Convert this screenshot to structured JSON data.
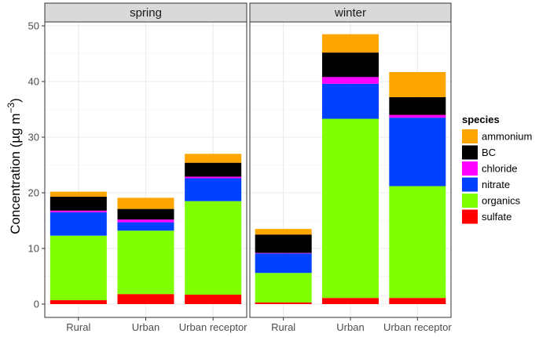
{
  "chart_data": {
    "type": "bar",
    "stacked": true,
    "ylabel": "Concentration (µg m⁻³)",
    "ylabel_main": "Concentration (µg m",
    "ylabel_sup": "−3",
    "ylabel_close": ")",
    "ylim": [
      0,
      51
    ],
    "yticks": [
      0,
      10,
      20,
      30,
      40,
      50
    ],
    "categories": [
      "Rural",
      "Urban",
      "Urban receptor"
    ],
    "legend_title": "species",
    "species": [
      {
        "name": "ammonium",
        "color": "#FFA500"
      },
      {
        "name": "BC",
        "color": "#000000"
      },
      {
        "name": "chloride",
        "color": "#FF00FF"
      },
      {
        "name": "nitrate",
        "color": "#0040FF"
      },
      {
        "name": "organics",
        "color": "#80FF00"
      },
      {
        "name": "sulfate",
        "color": "#FF0000"
      }
    ],
    "stack_order": [
      "sulfate",
      "organics",
      "nitrate",
      "chloride",
      "BC",
      "ammonium"
    ],
    "panels": [
      {
        "label": "spring",
        "values": {
          "sulfate": [
            0.7,
            1.8,
            1.7
          ],
          "organics": [
            11.6,
            11.4,
            16.8
          ],
          "nitrate": [
            4.2,
            1.5,
            4.1
          ],
          "chloride": [
            0.3,
            0.5,
            0.3
          ],
          "BC": [
            2.5,
            1.9,
            2.5
          ],
          "ammonium": [
            0.9,
            2.0,
            1.6
          ]
        }
      },
      {
        "label": "winter",
        "values": {
          "sulfate": [
            0.3,
            1.1,
            1.1
          ],
          "organics": [
            5.3,
            32.2,
            20.1
          ],
          "nitrate": [
            3.5,
            6.3,
            12.3
          ],
          "chloride": [
            0.1,
            1.2,
            0.5
          ],
          "BC": [
            3.3,
            4.4,
            3.2
          ],
          "ammonium": [
            1.0,
            3.3,
            4.5
          ]
        }
      }
    ]
  }
}
